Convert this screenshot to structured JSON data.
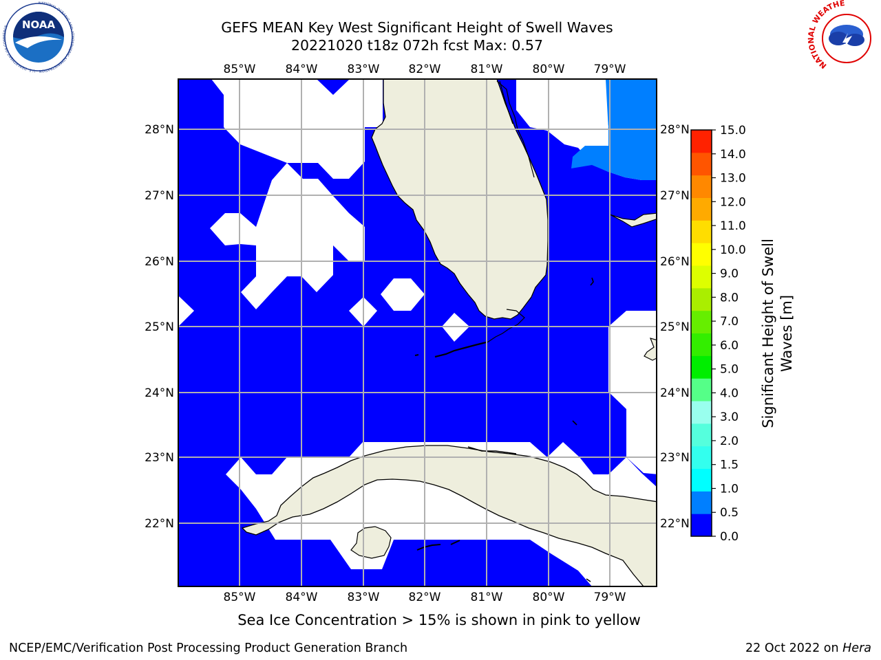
{
  "header": {
    "title_line1": "GEFS MEAN Key West Significant Height of Swell Waves",
    "title_line2": "20221020 t18z 072h fcst   Max: 0.57"
  },
  "logos": {
    "left": "NOAA",
    "left_ring_text": "NATIONAL OCEANIC AND ATMOSPHERIC ADMINISTRATION · U.S. DEPARTMENT OF COMMERCE",
    "right_ring_text": "NATIONAL WEATHER SERVICE"
  },
  "map": {
    "lon_labels": [
      "85°W",
      "84°W",
      "83°W",
      "82°W",
      "81°W",
      "80°W",
      "79°W"
    ],
    "lat_labels": [
      "28°N",
      "27°N",
      "26°N",
      "25°N",
      "24°N",
      "23°N",
      "22°N"
    ],
    "colors": {
      "ocean": "#0000ff",
      "ocean_swell_05_1": "#007fff",
      "land": "#eeeedd",
      "no_data": "#ffffff",
      "grid": "#b0b0b0"
    }
  },
  "colorbar": {
    "label_line1": "Significant Height of Swell",
    "label_line2": "Waves [m]",
    "ticks": [
      "0.0",
      "0.5",
      "1.0",
      "1.5",
      "2.0",
      "3.0",
      "4.0",
      "5.0",
      "6.0",
      "7.0",
      "8.0",
      "9.0",
      "10.0",
      "11.0",
      "12.0",
      "13.0",
      "14.0",
      "15.0"
    ],
    "colors": [
      "#0000ff",
      "#007fff",
      "#00ffff",
      "#33ffee",
      "#55ffdd",
      "#99ffee",
      "#55ff88",
      "#00ee00",
      "#33ee00",
      "#66ee00",
      "#aaee00",
      "#ddff00",
      "#ffff00",
      "#ffdd00",
      "#ffaa00",
      "#ff8800",
      "#ff5500",
      "#ff2200"
    ]
  },
  "note": "Sea Ice Concentration > 15% is shown in pink to yellow",
  "footer": {
    "left": "NCEP/EMC/Verification Post Processing Product Generation Branch",
    "right_prefix": "22 Oct 2022 on ",
    "right_host": "Hera"
  }
}
